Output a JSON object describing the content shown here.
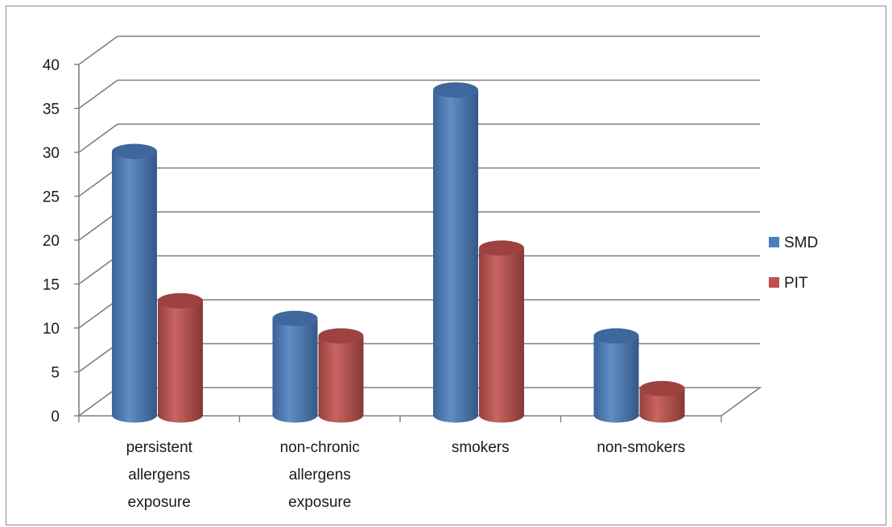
{
  "chart_data": {
    "type": "bar",
    "categories": [
      [
        "persistent",
        "allergens",
        "exposure"
      ],
      [
        "non-chronic",
        "allergens",
        "exposure"
      ],
      [
        "smokers"
      ],
      [
        "non-smokers"
      ]
    ],
    "series": [
      {
        "name": "SMD",
        "values": [
          30,
          11,
          37,
          9
        ],
        "color": "#4a7ebf"
      },
      {
        "name": "PIT",
        "values": [
          13,
          9,
          19,
          3
        ],
        "color": "#c0504d"
      }
    ],
    "ylim": [
      0,
      40
    ],
    "yticks": [
      0,
      5,
      10,
      15,
      20,
      25,
      30,
      35,
      40
    ],
    "title": "",
    "xlabel": "",
    "ylabel": "",
    "grid": true,
    "legend_position": "right"
  }
}
